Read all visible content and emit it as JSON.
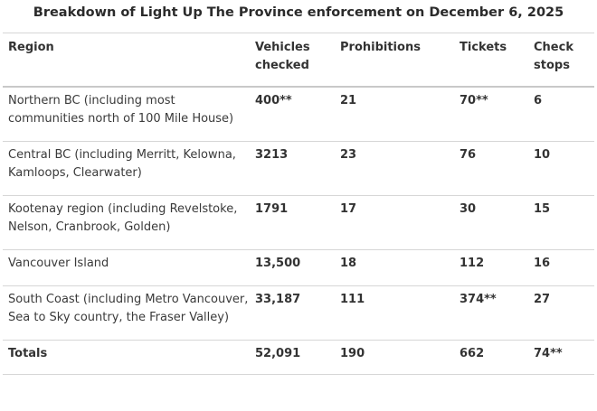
{
  "caption": "Breakdown of Light Up The Province enforcement on December 6, 2025",
  "headers": {
    "region": "Region",
    "vehicles": "Vehicles checked",
    "prohibitions": "Prohibitions",
    "tickets": "Tickets",
    "check_stops": "Check stops"
  },
  "rows": [
    {
      "region": "Northern BC (including most communities north of 100 Mile House)",
      "vehicles": "400**",
      "prohibitions": "21",
      "tickets": "70**",
      "check_stops": "6"
    },
    {
      "region": "Central BC (including Merritt, Kelowna, Kamloops, Clearwater)",
      "vehicles": "3213",
      "prohibitions": "23",
      "tickets": "76",
      "check_stops": "10"
    },
    {
      "region": "Kootenay region (including Revelstoke, Nelson, Cranbrook, Golden)",
      "vehicles": "1791",
      "prohibitions": "17",
      "tickets": "30",
      "check_stops": "15"
    },
    {
      "region": "Vancouver Island",
      "vehicles": "13,500",
      "prohibitions": "18",
      "tickets": "112",
      "check_stops": "16"
    },
    {
      "region": "South Coast (including Metro Vancouver, Sea to Sky country, the Fraser Valley)",
      "vehicles": "33,187",
      "prohibitions": "111",
      "tickets": "374**",
      "check_stops": "27"
    }
  ],
  "totals": {
    "label": "Totals",
    "vehicles": "52,091",
    "prohibitions": "190",
    "tickets": "662",
    "check_stops": "74**"
  }
}
